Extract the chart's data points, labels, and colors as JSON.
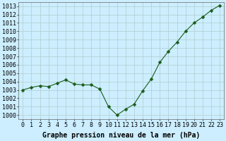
{
  "x": [
    0,
    1,
    2,
    3,
    4,
    5,
    6,
    7,
    8,
    9,
    10,
    11,
    12,
    13,
    14,
    15,
    16,
    17,
    18,
    19,
    20,
    21,
    22,
    23
  ],
  "y": [
    1003.0,
    1003.3,
    1003.5,
    1003.4,
    1003.8,
    1004.2,
    1003.7,
    1003.6,
    1003.6,
    1003.1,
    1001.0,
    1000.0,
    1000.7,
    1001.3,
    1002.9,
    1004.3,
    1006.3,
    1007.6,
    1008.7,
    1010.0,
    1011.0,
    1011.7,
    1012.5,
    1013.1
  ],
  "line_color": "#1a5c1a",
  "marker": "D",
  "marker_size": 2.5,
  "background_color": "#cceeff",
  "grid_color": "#b0cccc",
  "xlabel": "Graphe pression niveau de la mer (hPa)",
  "xlabel_fontsize": 7,
  "tick_fontsize": 6,
  "ylim": [
    999.5,
    1013.5
  ],
  "xlim": [
    -0.5,
    23.5
  ],
  "yticks": [
    1000,
    1001,
    1002,
    1003,
    1004,
    1005,
    1006,
    1007,
    1008,
    1009,
    1010,
    1011,
    1012,
    1013
  ],
  "xticks": [
    0,
    1,
    2,
    3,
    4,
    5,
    6,
    7,
    8,
    9,
    10,
    11,
    12,
    13,
    14,
    15,
    16,
    17,
    18,
    19,
    20,
    21,
    22,
    23
  ]
}
